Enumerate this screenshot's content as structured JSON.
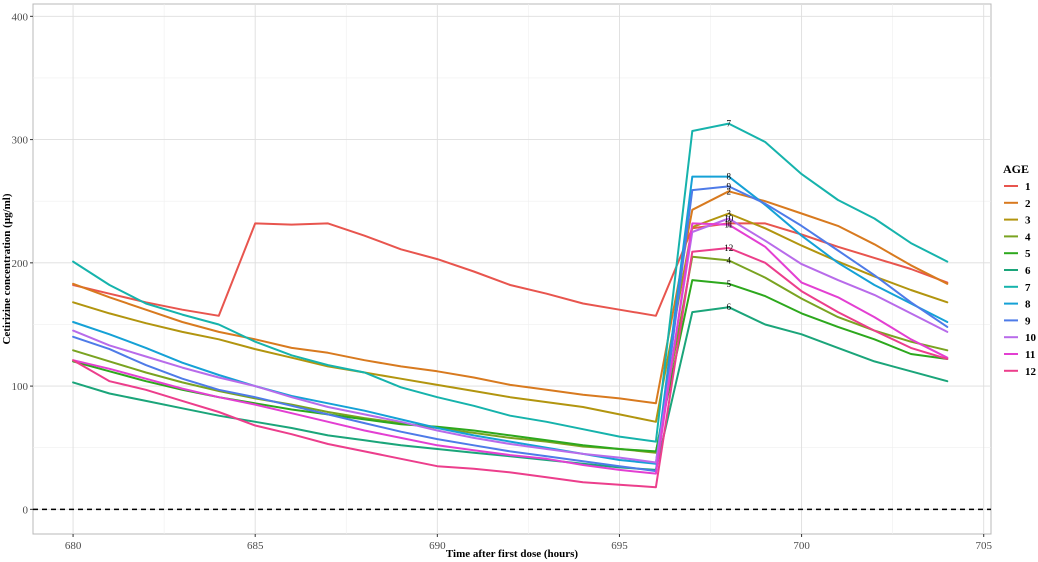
{
  "chart_data": {
    "type": "line",
    "xlabel": "Time after first dose (hours)",
    "ylabel": "Cetirizine concentration (μg/ml)",
    "xlim": [
      678.9,
      705.2
    ],
    "ylim": [
      -20,
      410
    ],
    "xticks": [
      680,
      685,
      690,
      695,
      700,
      705
    ],
    "yticks": [
      0,
      100,
      200,
      300,
      400
    ],
    "grid": true,
    "reference_line": {
      "y": 0,
      "style": "dashed"
    },
    "legend": {
      "title": "AGE",
      "placement": "right"
    },
    "label_x": 698,
    "series": [
      {
        "name": "1",
        "color": "#E8554E",
        "points": [
          [
            680,
            182
          ],
          [
            681,
            175
          ],
          [
            682,
            168
          ],
          [
            683,
            162
          ],
          [
            684,
            157
          ],
          [
            685,
            232
          ],
          [
            686,
            231
          ],
          [
            687,
            232
          ],
          [
            688,
            222
          ],
          [
            689,
            211
          ],
          [
            690,
            203
          ],
          [
            691,
            193
          ],
          [
            692,
            182
          ],
          [
            693,
            175
          ],
          [
            694,
            167
          ],
          [
            695,
            162
          ],
          [
            696,
            157
          ],
          [
            697,
            228
          ],
          [
            698,
            232
          ],
          [
            699,
            232
          ],
          [
            700,
            223
          ],
          [
            701,
            213
          ],
          [
            702,
            204
          ],
          [
            703,
            195
          ],
          [
            704,
            184
          ]
        ]
      },
      {
        "name": "2",
        "color": "#D87A1F",
        "points": [
          [
            680,
            183
          ],
          [
            681,
            172
          ],
          [
            682,
            162
          ],
          [
            683,
            152
          ],
          [
            684,
            144
          ],
          [
            685,
            138
          ],
          [
            686,
            131
          ],
          [
            687,
            127
          ],
          [
            688,
            121
          ],
          [
            689,
            116
          ],
          [
            690,
            112
          ],
          [
            691,
            107
          ],
          [
            692,
            101
          ],
          [
            693,
            97
          ],
          [
            694,
            93
          ],
          [
            695,
            90
          ],
          [
            696,
            86
          ],
          [
            697,
            243
          ],
          [
            698,
            258
          ],
          [
            699,
            250
          ],
          [
            700,
            240
          ],
          [
            701,
            230
          ],
          [
            702,
            215
          ],
          [
            703,
            198
          ],
          [
            704,
            183
          ]
        ]
      },
      {
        "name": "3",
        "color": "#B2950F",
        "points": [
          [
            680,
            168
          ],
          [
            681,
            159
          ],
          [
            682,
            151
          ],
          [
            683,
            144
          ],
          [
            684,
            138
          ],
          [
            685,
            130
          ],
          [
            686,
            123
          ],
          [
            687,
            116
          ],
          [
            688,
            111
          ],
          [
            689,
            106
          ],
          [
            690,
            101
          ],
          [
            691,
            96
          ],
          [
            692,
            91
          ],
          [
            693,
            87
          ],
          [
            694,
            83
          ],
          [
            695,
            77
          ],
          [
            696,
            71
          ],
          [
            697,
            229
          ],
          [
            698,
            240
          ],
          [
            699,
            228
          ],
          [
            700,
            214
          ],
          [
            701,
            201
          ],
          [
            702,
            189
          ],
          [
            703,
            178
          ],
          [
            704,
            168
          ]
        ]
      },
      {
        "name": "4",
        "color": "#7AA321",
        "points": [
          [
            680,
            129
          ],
          [
            681,
            120
          ],
          [
            682,
            111
          ],
          [
            683,
            103
          ],
          [
            684,
            96
          ],
          [
            685,
            90
          ],
          [
            686,
            85
          ],
          [
            687,
            79
          ],
          [
            688,
            74
          ],
          [
            689,
            70
          ],
          [
            690,
            66
          ],
          [
            691,
            62
          ],
          [
            692,
            58
          ],
          [
            693,
            55
          ],
          [
            694,
            51
          ],
          [
            695,
            49
          ],
          [
            696,
            46
          ],
          [
            697,
            205
          ],
          [
            698,
            202
          ],
          [
            699,
            188
          ],
          [
            700,
            171
          ],
          [
            701,
            156
          ],
          [
            702,
            145
          ],
          [
            703,
            136
          ],
          [
            704,
            129
          ]
        ]
      },
      {
        "name": "5",
        "color": "#2DA81D",
        "points": [
          [
            680,
            120
          ],
          [
            681,
            112
          ],
          [
            682,
            104
          ],
          [
            683,
            97
          ],
          [
            684,
            91
          ],
          [
            685,
            86
          ],
          [
            686,
            81
          ],
          [
            687,
            77
          ],
          [
            688,
            73
          ],
          [
            689,
            69
          ],
          [
            690,
            67
          ],
          [
            691,
            64
          ],
          [
            692,
            60
          ],
          [
            693,
            56
          ],
          [
            694,
            52
          ],
          [
            695,
            49
          ],
          [
            696,
            47
          ],
          [
            697,
            186
          ],
          [
            698,
            183
          ],
          [
            699,
            173
          ],
          [
            700,
            159
          ],
          [
            701,
            148
          ],
          [
            702,
            138
          ],
          [
            703,
            126
          ],
          [
            704,
            122
          ]
        ]
      },
      {
        "name": "6",
        "color": "#1BA57A",
        "points": [
          [
            680,
            103
          ],
          [
            681,
            94
          ],
          [
            682,
            88
          ],
          [
            683,
            82
          ],
          [
            684,
            76
          ],
          [
            685,
            71
          ],
          [
            686,
            66
          ],
          [
            687,
            60
          ],
          [
            688,
            56
          ],
          [
            689,
            52
          ],
          [
            690,
            49
          ],
          [
            691,
            46
          ],
          [
            692,
            43
          ],
          [
            693,
            40
          ],
          [
            694,
            37
          ],
          [
            695,
            34
          ],
          [
            696,
            32
          ],
          [
            697,
            160
          ],
          [
            698,
            164
          ],
          [
            699,
            150
          ],
          [
            700,
            142
          ],
          [
            701,
            131
          ],
          [
            702,
            120
          ],
          [
            703,
            112
          ],
          [
            704,
            104
          ]
        ]
      },
      {
        "name": "7",
        "color": "#16B3AC",
        "points": [
          [
            680,
            201
          ],
          [
            681,
            182
          ],
          [
            682,
            167
          ],
          [
            683,
            158
          ],
          [
            684,
            150
          ],
          [
            685,
            136
          ],
          [
            686,
            125
          ],
          [
            687,
            117
          ],
          [
            688,
            111
          ],
          [
            689,
            99
          ],
          [
            690,
            91
          ],
          [
            691,
            84
          ],
          [
            692,
            76
          ],
          [
            693,
            71
          ],
          [
            694,
            65
          ],
          [
            695,
            59
          ],
          [
            696,
            55
          ],
          [
            697,
            307
          ],
          [
            698,
            313
          ],
          [
            699,
            298
          ],
          [
            700,
            272
          ],
          [
            701,
            251
          ],
          [
            702,
            236
          ],
          [
            703,
            216
          ],
          [
            704,
            201
          ]
        ]
      },
      {
        "name": "8",
        "color": "#15A1D6",
        "points": [
          [
            680,
            152
          ],
          [
            681,
            142
          ],
          [
            682,
            131
          ],
          [
            683,
            119
          ],
          [
            684,
            109
          ],
          [
            685,
            100
          ],
          [
            686,
            92
          ],
          [
            687,
            86
          ],
          [
            688,
            80
          ],
          [
            689,
            73
          ],
          [
            690,
            66
          ],
          [
            691,
            60
          ],
          [
            692,
            55
          ],
          [
            693,
            50
          ],
          [
            694,
            45
          ],
          [
            695,
            40
          ],
          [
            696,
            37
          ],
          [
            697,
            270
          ],
          [
            698,
            270
          ],
          [
            699,
            247
          ],
          [
            700,
            222
          ],
          [
            701,
            200
          ],
          [
            702,
            182
          ],
          [
            703,
            167
          ],
          [
            704,
            152
          ]
        ]
      },
      {
        "name": "9",
        "color": "#4E7BE8",
        "points": [
          [
            680,
            140
          ],
          [
            681,
            130
          ],
          [
            682,
            117
          ],
          [
            683,
            106
          ],
          [
            684,
            97
          ],
          [
            685,
            91
          ],
          [
            686,
            84
          ],
          [
            687,
            77
          ],
          [
            688,
            70
          ],
          [
            689,
            63
          ],
          [
            690,
            57
          ],
          [
            691,
            52
          ],
          [
            692,
            47
          ],
          [
            693,
            43
          ],
          [
            694,
            39
          ],
          [
            695,
            35
          ],
          [
            696,
            31
          ],
          [
            697,
            259
          ],
          [
            698,
            262
          ],
          [
            699,
            248
          ],
          [
            700,
            230
          ],
          [
            701,
            210
          ],
          [
            702,
            190
          ],
          [
            703,
            168
          ],
          [
            704,
            148
          ]
        ]
      },
      {
        "name": "10",
        "color": "#B86BEA",
        "points": [
          [
            680,
            145
          ],
          [
            681,
            133
          ],
          [
            682,
            124
          ],
          [
            683,
            115
          ],
          [
            684,
            107
          ],
          [
            685,
            100
          ],
          [
            686,
            91
          ],
          [
            687,
            83
          ],
          [
            688,
            77
          ],
          [
            689,
            71
          ],
          [
            690,
            64
          ],
          [
            691,
            58
          ],
          [
            692,
            53
          ],
          [
            693,
            49
          ],
          [
            694,
            45
          ],
          [
            695,
            42
          ],
          [
            696,
            38
          ],
          [
            697,
            225
          ],
          [
            698,
            236
          ],
          [
            699,
            218
          ],
          [
            700,
            199
          ],
          [
            701,
            186
          ],
          [
            702,
            174
          ],
          [
            703,
            159
          ],
          [
            704,
            144
          ]
        ]
      },
      {
        "name": "11",
        "color": "#E33FD2",
        "points": [
          [
            680,
            121
          ],
          [
            681,
            114
          ],
          [
            682,
            106
          ],
          [
            683,
            98
          ],
          [
            684,
            91
          ],
          [
            685,
            85
          ],
          [
            686,
            78
          ],
          [
            687,
            71
          ],
          [
            688,
            64
          ],
          [
            689,
            58
          ],
          [
            690,
            52
          ],
          [
            691,
            48
          ],
          [
            692,
            44
          ],
          [
            693,
            41
          ],
          [
            694,
            36
          ],
          [
            695,
            32
          ],
          [
            696,
            29
          ],
          [
            697,
            232
          ],
          [
            698,
            231
          ],
          [
            699,
            213
          ],
          [
            700,
            184
          ],
          [
            701,
            172
          ],
          [
            702,
            156
          ],
          [
            703,
            138
          ],
          [
            704,
            123
          ]
        ]
      },
      {
        "name": "12",
        "color": "#EC3E8C",
        "points": [
          [
            680,
            121
          ],
          [
            681,
            104
          ],
          [
            682,
            97
          ],
          [
            683,
            88
          ],
          [
            684,
            79
          ],
          [
            685,
            68
          ],
          [
            686,
            61
          ],
          [
            687,
            53
          ],
          [
            688,
            47
          ],
          [
            689,
            41
          ],
          [
            690,
            35
          ],
          [
            691,
            33
          ],
          [
            692,
            30
          ],
          [
            693,
            26
          ],
          [
            694,
            22
          ],
          [
            695,
            20
          ],
          [
            696,
            18
          ],
          [
            697,
            209
          ],
          [
            698,
            212
          ],
          [
            699,
            200
          ],
          [
            700,
            177
          ],
          [
            701,
            160
          ],
          [
            702,
            145
          ],
          [
            703,
            131
          ],
          [
            704,
            122
          ]
        ]
      }
    ]
  }
}
